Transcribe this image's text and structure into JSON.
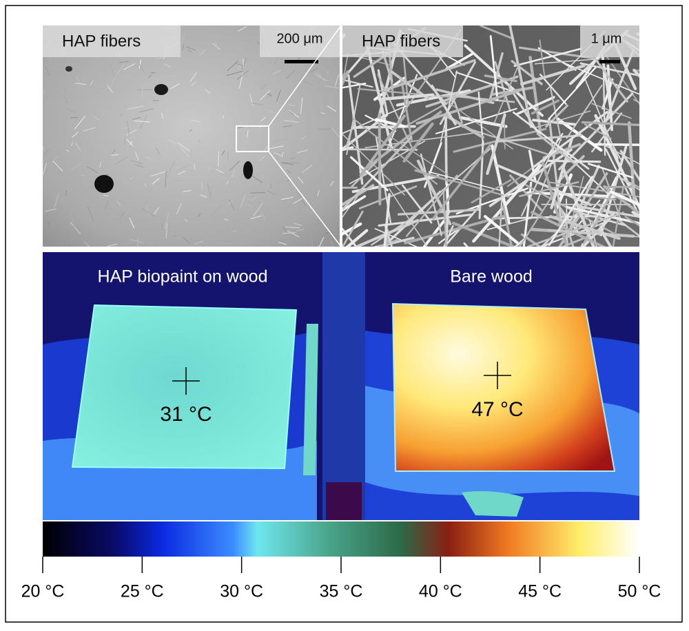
{
  "sem_left": {
    "label": "HAP fibers",
    "scale_bar": "200 μm"
  },
  "sem_right": {
    "label": "HAP fibers",
    "scale_bar": "1 μm"
  },
  "thermal": {
    "left_label": "HAP biopaint on wood",
    "right_label": "Bare wood",
    "left_temp": "31 °C",
    "right_temp": "47 °C"
  },
  "colorbar": {
    "range": [
      20,
      50
    ],
    "ticks": [
      {
        "value": 20,
        "label": "20 °C"
      },
      {
        "value": 25,
        "label": "25 °C"
      },
      {
        "value": 30,
        "label": "30 °C"
      },
      {
        "value": 35,
        "label": "35 °C"
      },
      {
        "value": 40,
        "label": "40 °C"
      },
      {
        "value": 45,
        "label": "45 °C"
      },
      {
        "value": 50,
        "label": "50 °C"
      }
    ]
  }
}
